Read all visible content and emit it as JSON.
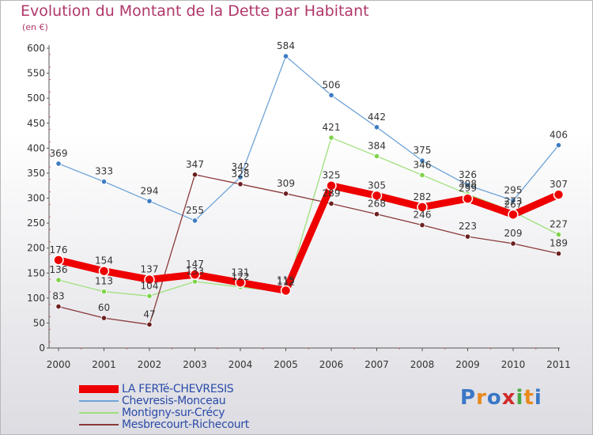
{
  "title": "Evolution du Montant de la Dette par Habitant",
  "subtitle": "(en €)",
  "logo": {
    "text": "Proxiti",
    "letters": [
      "P",
      "r",
      "o",
      "x",
      "i",
      "t",
      "i"
    ],
    "colors": [
      "#3a77c6",
      "#e98a1b",
      "#3a77c6",
      "#d02b2b",
      "#4aa844",
      "#e98a1b",
      "#3a77c6"
    ]
  },
  "chart_data": {
    "type": "line",
    "title": "Evolution du Montant de la Dette par Habitant",
    "ylabel": "(en €)",
    "xlabel": "",
    "ylim": [
      0,
      600
    ],
    "yticks": [
      0,
      50,
      100,
      150,
      200,
      250,
      300,
      350,
      400,
      450,
      500,
      550,
      600
    ],
    "categories": [
      "2000",
      "2001",
      "2002",
      "2003",
      "2004",
      "2005",
      "2006",
      "2007",
      "2008",
      "2009",
      "2010",
      "2011"
    ],
    "grid": false,
    "legend_position": "bottom-left",
    "series": [
      {
        "name": "LA FERTé-CHEVRESIS",
        "color": "#ee0000",
        "marker": "#ee0000",
        "width": 9,
        "values": [
          176,
          154,
          137,
          147,
          131,
          115,
          325,
          305,
          282,
          299,
          267,
          307
        ]
      },
      {
        "name": "Chevresis-Monceau",
        "color": "#6fa4d8",
        "marker": "#3d7bc2",
        "width": 1.3,
        "values": [
          369,
          333,
          294,
          255,
          342,
          584,
          506,
          442,
          375,
          326,
          295,
          406
        ]
      },
      {
        "name": "Montigny-sur-Crécy",
        "color": "#9ee07a",
        "marker": "#7fd24a",
        "width": 1.3,
        "values": [
          136,
          113,
          104,
          133,
          122,
          112,
          421,
          384,
          346,
          308,
          273,
          227
        ]
      },
      {
        "name": "Mesbrecourt-Richecourt",
        "color": "#8a3a3a",
        "marker": "#6b1f1f",
        "width": 1.3,
        "values": [
          83,
          60,
          47,
          347,
          328,
          309,
          289,
          268,
          246,
          223,
          209,
          189
        ]
      }
    ],
    "data_labels": [
      {
        "series": 0,
        "labels": [
          "176",
          "154",
          "137",
          "147",
          "131",
          "115",
          "325",
          "305",
          "282",
          "299",
          "267",
          "307"
        ]
      },
      {
        "series": 1,
        "labels": [
          "369",
          "333",
          "294",
          "255",
          "342",
          "584",
          "506",
          "442",
          "375",
          "326",
          "295",
          "406"
        ]
      },
      {
        "series": 2,
        "labels": [
          "136",
          "113",
          "104",
          "133",
          "122",
          "112",
          "421",
          "384",
          "346",
          "308",
          "273",
          "227"
        ]
      },
      {
        "series": 3,
        "labels": [
          "83",
          "60",
          "47",
          "347",
          "328",
          "309",
          "289",
          "268",
          "246",
          "223",
          "209",
          "189"
        ]
      }
    ]
  }
}
